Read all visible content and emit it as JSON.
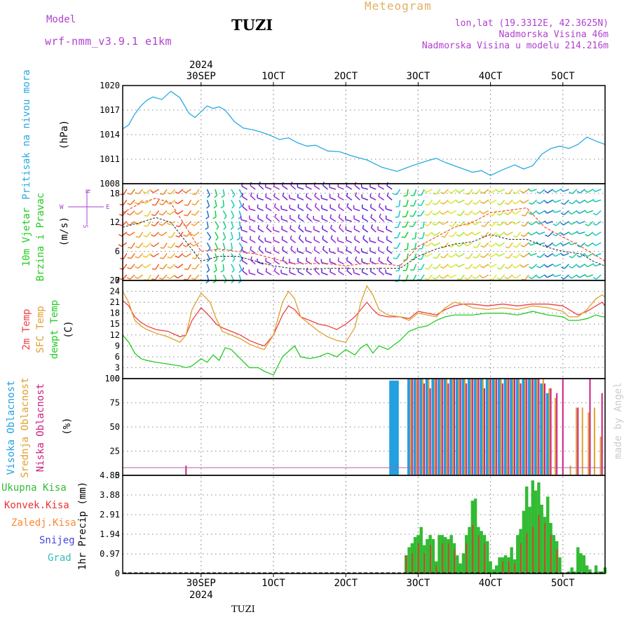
{
  "header": {
    "model_label": "Model",
    "model_name": "wrf-nmm_v3.9.1 e1km",
    "station": "TUZI",
    "title": "Meteogram",
    "coords": "lon,lat (19.3312E, 42.3625N)",
    "elevation": "Nadmorska Visina 46m",
    "model_elevation": "Nadmorska Visina u modelu 214.216m"
  },
  "footer": {
    "station": "TUZI",
    "watermark": "made by Angel"
  },
  "time_axis": {
    "start_hour": -52,
    "end_hour": 268,
    "year_label": "2024",
    "ticks": [
      {
        "hour": 0,
        "label": "30SEP"
      },
      {
        "hour": 48,
        "label": "1OCT"
      },
      {
        "hour": 96,
        "label": "2OCT"
      },
      {
        "hour": 144,
        "label": "3OCT"
      },
      {
        "hour": 192,
        "label": "4OCT"
      },
      {
        "hour": 240,
        "label": "5OCT"
      }
    ]
  },
  "colors": {
    "pressure": "#2aaae2",
    "temp_2m": "#ee4040",
    "temp_sfc": "#e0a030",
    "dewpoint": "#22cc22",
    "high_cloud": "#22a0e0",
    "mid_cloud": "#e0a030",
    "low_cloud": "#cc2080",
    "total_precip": "#33bb33",
    "conv_precip": "#ee3030",
    "stratiform": "#ff8833",
    "snow": "#4444dd",
    "hail": "#33bbbb",
    "wind_speed": "#222222",
    "wind_gust": "#f06040",
    "wind_axis_labels": "#aa40cc"
  },
  "chart_data": [
    {
      "type": "line",
      "title": "Pritisak na nivou mora",
      "ylabel": "(hPa)",
      "ylim": [
        1008,
        1020
      ],
      "yticks": [
        1008,
        1011,
        1014,
        1017,
        1020
      ],
      "series": [
        {
          "name": "Pritisak na nivou mora",
          "color": "#2aaae2",
          "x": [
            -52,
            -48,
            -44,
            -40,
            -36,
            -32,
            -26,
            -20,
            -14,
            -8,
            -4,
            0,
            4,
            8,
            12,
            16,
            22,
            28,
            34,
            40,
            46,
            52,
            58,
            64,
            70,
            76,
            84,
            92,
            100,
            110,
            120,
            130,
            140,
            150,
            156,
            162,
            168,
            174,
            180,
            186,
            192,
            200,
            208,
            214,
            220,
            226,
            232,
            238,
            244,
            250,
            256,
            262,
            268
          ],
          "y": [
            1014.7,
            1015.2,
            1016.5,
            1017.5,
            1018.2,
            1018.6,
            1018.3,
            1019.3,
            1018.5,
            1016.6,
            1016.1,
            1016.8,
            1017.5,
            1017.2,
            1017.4,
            1017.0,
            1015.6,
            1014.8,
            1014.6,
            1014.3,
            1013.9,
            1013.4,
            1013.6,
            1013.0,
            1012.6,
            1012.7,
            1012.0,
            1011.9,
            1011.4,
            1010.9,
            1010.0,
            1009.5,
            1010.2,
            1010.8,
            1011.1,
            1010.6,
            1010.2,
            1009.8,
            1009.4,
            1009.6,
            1009.0,
            1009.7,
            1010.3,
            1009.8,
            1010.2,
            1011.6,
            1012.3,
            1012.6,
            1012.3,
            1012.8,
            1013.7,
            1013.2,
            1012.8
          ]
        }
      ]
    },
    {
      "type": "line",
      "title": "10m Vjetar Brzina i Pravac",
      "ylabel": "(m/s)",
      "ylim": [
        0,
        20
      ],
      "yticks": [
        0,
        6,
        12,
        18
      ],
      "direction_labels": [
        "N",
        "E",
        "W",
        "S"
      ],
      "series": [
        {
          "name": "Brzina",
          "color": "#222222",
          "x": [
            -52,
            -40,
            -30,
            -20,
            -10,
            0,
            12,
            24,
            36,
            48,
            60,
            72,
            84,
            96,
            108,
            120,
            132,
            144,
            156,
            168,
            180,
            192,
            204,
            216,
            228,
            240,
            252,
            260,
            268
          ],
          "y": [
            11,
            12,
            13,
            12,
            8,
            4,
            5,
            5,
            4,
            3,
            2.5,
            2.3,
            2.5,
            2.5,
            2.4,
            2.5,
            2.5,
            5,
            6.5,
            7.5,
            8,
            9.5,
            8.5,
            8.5,
            7,
            6,
            5.5,
            4,
            3
          ]
        },
        {
          "name": "Udari",
          "color": "#f06040",
          "x": [
            -52,
            -40,
            -30,
            -20,
            -10,
            0,
            12,
            24,
            36,
            48,
            60,
            72,
            84,
            96,
            108,
            120,
            132,
            144,
            156,
            168,
            180,
            192,
            204,
            216,
            228,
            240,
            252,
            260,
            268
          ],
          "y": [
            14,
            16,
            17,
            16,
            11,
            6,
            6.5,
            6,
            5.5,
            4.5,
            3.5,
            3.5,
            3.5,
            3,
            3.5,
            3.5,
            3,
            7,
            9,
            11,
            12,
            14,
            14.5,
            15,
            11,
            9,
            7,
            5.5,
            4
          ]
        }
      ]
    },
    {
      "type": "line",
      "title": "2m Temp / SFC Temp / dewpt Temp",
      "ylabel": "(C)",
      "ylim": [
        0,
        27
      ],
      "yticks": [
        0,
        3,
        6,
        9,
        12,
        15,
        18,
        21,
        24,
        27
      ],
      "series": [
        {
          "name": "2m Temp",
          "color": "#ee4040",
          "x": [
            -52,
            -48,
            -44,
            -40,
            -36,
            -30,
            -22,
            -14,
            -10,
            -6,
            0,
            6,
            10,
            14,
            20,
            26,
            32,
            38,
            42,
            48,
            54,
            58,
            62,
            66,
            72,
            78,
            84,
            90,
            96,
            102,
            106,
            110,
            114,
            118,
            124,
            132,
            138,
            144,
            150,
            156,
            162,
            168,
            174,
            180,
            190,
            200,
            210,
            220,
            230,
            240,
            244,
            250,
            256,
            262,
            266,
            268
          ],
          "y": [
            21.5,
            20,
            17,
            15.5,
            14.5,
            13.5,
            13,
            11.5,
            12,
            16,
            19.5,
            17,
            15,
            14,
            13,
            12,
            10.5,
            9.5,
            9,
            12,
            17.5,
            20,
            19,
            17,
            16,
            15,
            14.5,
            13.5,
            15,
            17,
            19,
            21,
            19,
            17.5,
            17,
            17,
            16.5,
            18.5,
            18,
            17.5,
            19,
            20,
            20.5,
            20.5,
            20,
            20.5,
            20,
            20.5,
            20.5,
            20,
            19,
            17.5,
            18.5,
            20,
            21,
            20
          ]
        },
        {
          "name": "SFC Temp",
          "color": "#e0a030",
          "x": [
            -52,
            -48,
            -44,
            -40,
            -36,
            -30,
            -22,
            -14,
            -10,
            -6,
            0,
            6,
            10,
            14,
            20,
            26,
            32,
            38,
            42,
            48,
            54,
            58,
            62,
            66,
            72,
            78,
            84,
            90,
            96,
            102,
            106,
            110,
            114,
            118,
            124,
            132,
            138,
            144,
            150,
            156,
            162,
            168,
            174,
            180,
            190,
            200,
            210,
            220,
            230,
            240,
            244,
            250,
            256,
            262,
            266,
            268
          ],
          "y": [
            24,
            21,
            16,
            14.5,
            13.5,
            12.5,
            11.5,
            10,
            12,
            19,
            23.5,
            21,
            16.5,
            13,
            12,
            11,
            9.5,
            8.5,
            8,
            12,
            21,
            24,
            22,
            17,
            15,
            13,
            11.5,
            10.5,
            10,
            14,
            21,
            25.5,
            23,
            19,
            17.5,
            17,
            16,
            18,
            17.5,
            17,
            19.5,
            21,
            20.5,
            19.5,
            19,
            19.5,
            19,
            20,
            19.5,
            18.5,
            17,
            17,
            19,
            22,
            23,
            22.5
          ]
        },
        {
          "name": "dewpt Temp",
          "color": "#22cc22",
          "x": [
            -52,
            -48,
            -44,
            -40,
            -36,
            -30,
            -22,
            -14,
            -10,
            -6,
            0,
            4,
            8,
            12,
            16,
            20,
            26,
            32,
            38,
            42,
            48,
            54,
            58,
            62,
            66,
            72,
            78,
            84,
            90,
            96,
            102,
            106,
            110,
            114,
            118,
            124,
            132,
            138,
            144,
            150,
            156,
            162,
            168,
            174,
            180,
            190,
            200,
            210,
            220,
            230,
            240,
            244,
            250,
            256,
            262,
            266,
            268
          ],
          "y": [
            12,
            10,
            7,
            5.5,
            5,
            4.5,
            4,
            3.5,
            3,
            3.5,
            5.5,
            4.5,
            6.5,
            5,
            8.5,
            8,
            5.5,
            3,
            3,
            2,
            1,
            6,
            7.5,
            9,
            6,
            5.5,
            6,
            7,
            6,
            8,
            6.5,
            8.5,
            9.5,
            7,
            9,
            8,
            10.5,
            13,
            14,
            14.5,
            16,
            17,
            17.5,
            17.5,
            17.5,
            18,
            18,
            17.5,
            18.5,
            17.5,
            17,
            16,
            16,
            16.5,
            17.5,
            17,
            17
          ]
        }
      ]
    },
    {
      "type": "bar",
      "title": "Visoka / Srednja / Niska Oblacnost",
      "ylabel": "(%)",
      "ylim": [
        0,
        100
      ],
      "yticks": [
        0,
        25,
        50,
        75,
        100
      ],
      "series": [
        {
          "name": "Visoka Oblacnost",
          "color": "#22a0e0",
          "x": [
            126,
            128,
            130,
            138,
            142,
            146,
            150,
            154,
            158,
            162,
            166,
            170,
            174,
            178,
            182,
            186,
            190,
            194,
            198,
            202,
            206,
            210,
            214,
            218,
            222,
            226,
            230
          ],
          "y": [
            98,
            98,
            98,
            100,
            100,
            100,
            100,
            100,
            100,
            100,
            100,
            100,
            100,
            100,
            100,
            100,
            100,
            100,
            100,
            100,
            100,
            100,
            100,
            100,
            100,
            95,
            85
          ]
        },
        {
          "name": "Srednja Oblacnost",
          "color": "#e0a030",
          "x": [
            139,
            143,
            147,
            151,
            155,
            159,
            163,
            167,
            171,
            175,
            179,
            183,
            187,
            191,
            195,
            199,
            203,
            207,
            211,
            215,
            219,
            223,
            227,
            231,
            235,
            245,
            249,
            253,
            257,
            261,
            265
          ],
          "y": [
            100,
            100,
            100,
            100,
            100,
            100,
            100,
            100,
            100,
            100,
            100,
            100,
            100,
            100,
            100,
            100,
            100,
            100,
            100,
            100,
            100,
            100,
            100,
            90,
            80,
            10,
            70,
            70,
            65,
            70,
            40
          ]
        },
        {
          "name": "Niska Oblacnost",
          "color": "#cc2080",
          "x": [
            -10,
            140,
            144,
            148,
            152,
            156,
            160,
            164,
            168,
            172,
            176,
            180,
            184,
            188,
            192,
            196,
            200,
            204,
            208,
            212,
            216,
            220,
            224,
            228,
            232,
            236,
            240,
            250,
            258,
            266
          ],
          "y": [
            10,
            100,
            100,
            95,
            90,
            100,
            100,
            95,
            100,
            100,
            95,
            100,
            100,
            90,
            100,
            100,
            95,
            100,
            100,
            95,
            100,
            100,
            100,
            95,
            90,
            85,
            100,
            70,
            100,
            85
          ]
        }
      ]
    },
    {
      "type": "bar",
      "title": "1hr Precip",
      "ylabel": "1hr Precip (mm)",
      "ylim": [
        0,
        4.85
      ],
      "yticks": [
        0,
        0.97,
        1.94,
        2.91,
        3.88,
        4.85
      ],
      "legend": [
        "Ukupna Kisa",
        "Konvek.Kisa",
        "Zaledj.Kisa",
        "Snijeg",
        "Grad"
      ],
      "series": [
        {
          "name": "Ukupna Kisa",
          "color": "#33bb33",
          "x": [
            136,
            138,
            140,
            142,
            144,
            146,
            148,
            150,
            152,
            154,
            156,
            158,
            160,
            162,
            164,
            166,
            168,
            170,
            172,
            174,
            176,
            178,
            180,
            182,
            184,
            186,
            188,
            190,
            192,
            194,
            196,
            198,
            200,
            202,
            204,
            206,
            208,
            210,
            212,
            214,
            216,
            218,
            220,
            222,
            224,
            226,
            228,
            230,
            232,
            234,
            236,
            238,
            240,
            242,
            244,
            246,
            248,
            250,
            252,
            254,
            256,
            258,
            260,
            262,
            264,
            266,
            268
          ],
          "y": [
            0.9,
            1.3,
            1.5,
            1.8,
            1.9,
            2.3,
            1.4,
            1.7,
            1.9,
            1.7,
            0.6,
            1.9,
            1.9,
            1.8,
            1.7,
            1.9,
            1.5,
            0.9,
            0.5,
            1.0,
            1.9,
            2.3,
            3.6,
            3.7,
            2.3,
            2.1,
            1.9,
            1.6,
            0.6,
            0.2,
            0.4,
            0.8,
            0.8,
            0.9,
            0.8,
            1.3,
            0.7,
            1.9,
            2.2,
            3.1,
            4.3,
            3.3,
            4.6,
            4.1,
            4.5,
            3.4,
            2.8,
            3.8,
            2.5,
            1.9,
            1.6,
            0.8,
            0.05,
            0.05,
            0.1,
            0.3,
            0.1,
            1.3,
            1.0,
            0.9,
            0.4,
            0.2,
            0.05,
            0.4,
            0.1,
            0.1,
            0.3
          ]
        },
        {
          "name": "Konvek.Kisa",
          "color": "#ee3030",
          "x": [
            136,
            140,
            144,
            148,
            152,
            156,
            160,
            164,
            168,
            176,
            180,
            184,
            188,
            200,
            204,
            208,
            212,
            216,
            220,
            224,
            228,
            232,
            236
          ],
          "y": [
            0.9,
            1.0,
            1.5,
            1.0,
            1.4,
            0.4,
            1.5,
            1.5,
            1.2,
            1.5,
            2.4,
            1.9,
            1.5,
            0.6,
            0.6,
            0.5,
            1.5,
            2.0,
            2.3,
            2.9,
            2.5,
            1.9,
            1.2
          ]
        }
      ]
    }
  ]
}
